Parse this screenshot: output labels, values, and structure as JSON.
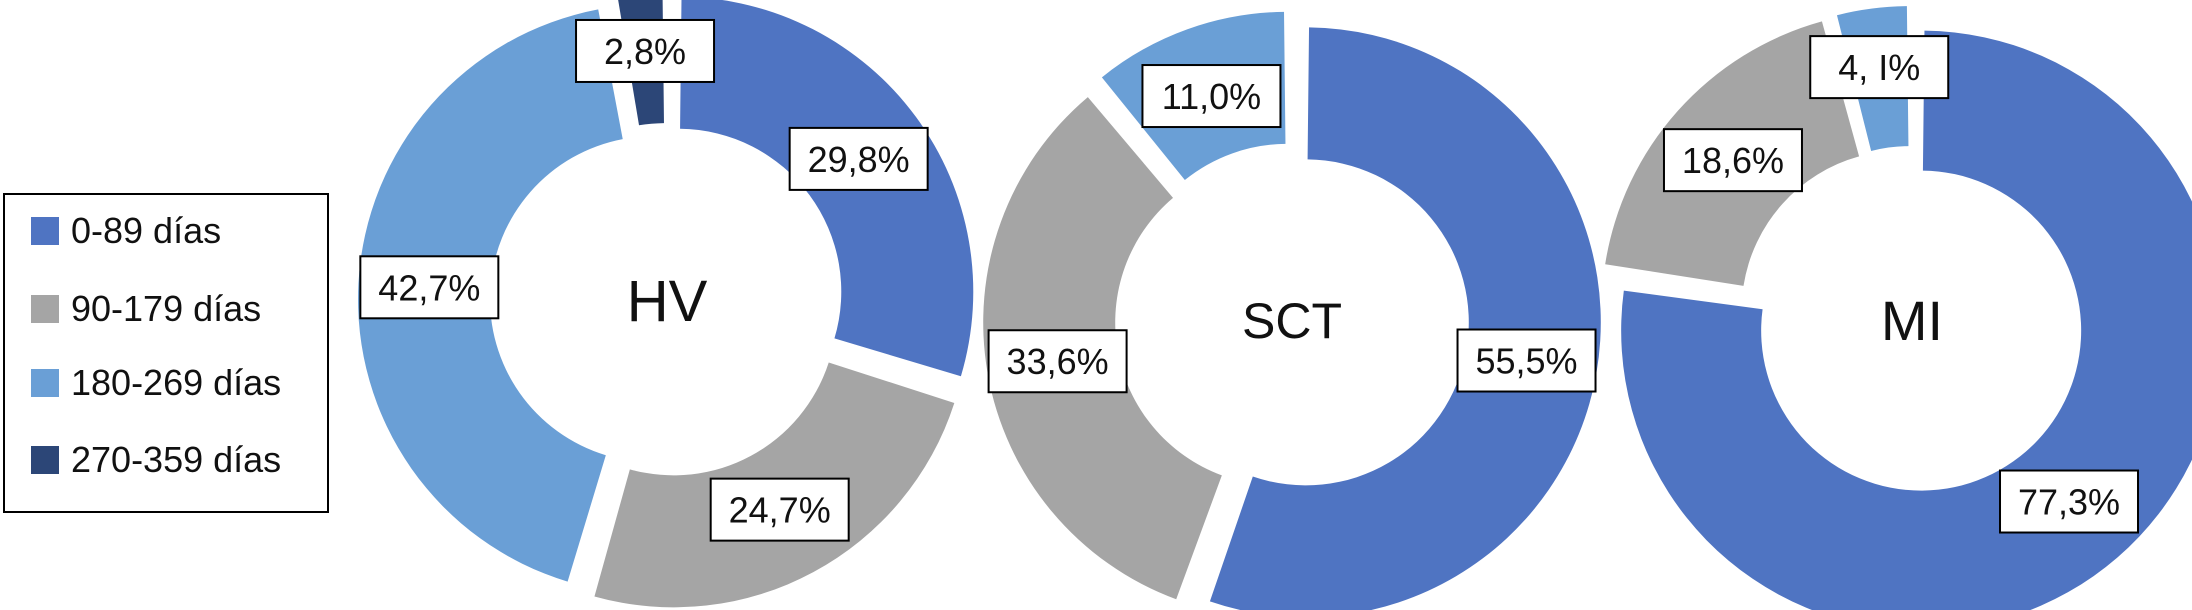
{
  "chart_data": [
    {
      "type": "donut",
      "center_label": "HV",
      "categories": [
        "0-89 días",
        "90-179 días",
        "180-269 días",
        "270-359 días"
      ],
      "values": [
        29.8,
        24.7,
        42.7,
        2.8
      ],
      "labels": [
        "29,8%",
        "24,7%",
        "42,7%",
        "2,8%"
      ]
    },
    {
      "type": "donut",
      "center_label": "SCT",
      "categories": [
        "0-89 días",
        "90-179 días",
        "180-269 días"
      ],
      "values": [
        55.5,
        33.6,
        11.0
      ],
      "labels": [
        "55,5%",
        "33,6%",
        "11,0%"
      ]
    },
    {
      "type": "donut",
      "center_label": "MI",
      "categories": [
        "0-89 días",
        "90-179 días",
        "180-269 días"
      ],
      "values": [
        77.3,
        18.6,
        4.1
      ],
      "labels": [
        "77,3%",
        "18,6%",
        "4, I%"
      ]
    }
  ],
  "legend": {
    "placement": "left",
    "items": [
      {
        "label": "0-89 días",
        "color": "#4f74c2"
      },
      {
        "label": "90-179 días",
        "color": "#a5a5a5"
      },
      {
        "label": "180-269 días",
        "color": "#6a9fd6"
      },
      {
        "label": "270-359 días",
        "color": "#2c4677"
      }
    ]
  }
}
